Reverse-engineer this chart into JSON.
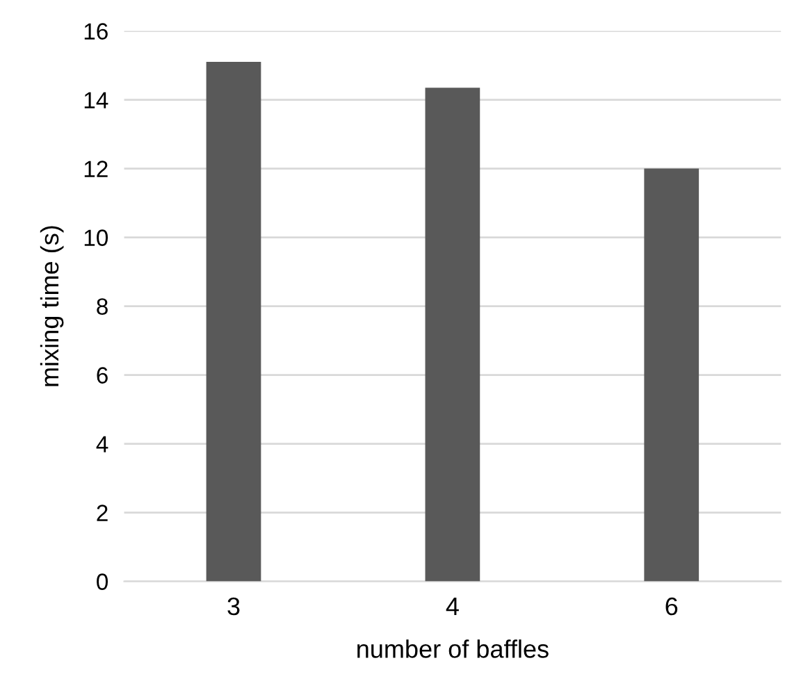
{
  "chart_data": {
    "type": "bar",
    "xlabel": "number of baffles",
    "ylabel": "mixing time (s)",
    "categories": [
      "3",
      "4",
      "6"
    ],
    "values": [
      15.1,
      14.35,
      12.0
    ],
    "color": "#595959",
    "ylim": [
      0,
      16
    ],
    "yticks": [
      0,
      2,
      4,
      6,
      8,
      10,
      12,
      14,
      16
    ],
    "grid": "y"
  }
}
